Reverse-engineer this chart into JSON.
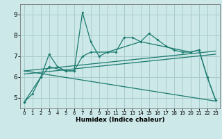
{
  "bg_color": "#cce8e8",
  "grid_color": "#aacccc",
  "line_color": "#1a7a6e",
  "xlabel": "Humidex (Indice chaleur)",
  "xlim": [
    -0.5,
    23.5
  ],
  "ylim": [
    4.5,
    9.5
  ],
  "yticks": [
    5,
    6,
    7,
    8,
    9
  ],
  "xticks": [
    0,
    1,
    2,
    3,
    4,
    5,
    6,
    7,
    8,
    9,
    10,
    11,
    12,
    13,
    14,
    15,
    16,
    17,
    18,
    19,
    20,
    21,
    22,
    23
  ],
  "series1_x": [
    0,
    1,
    2,
    3,
    4,
    5,
    6,
    7,
    8,
    9,
    10,
    11,
    12,
    13,
    14,
    15,
    16,
    17,
    18,
    19,
    20,
    21,
    22,
    23
  ],
  "series1_y": [
    4.8,
    5.2,
    6.0,
    7.1,
    6.5,
    6.3,
    6.3,
    9.1,
    7.7,
    7.0,
    7.2,
    7.2,
    7.9,
    7.9,
    7.7,
    8.1,
    7.8,
    7.5,
    7.3,
    7.2,
    7.2,
    7.3,
    6.0,
    4.9
  ],
  "series2_x": [
    0,
    2,
    3,
    5,
    6,
    7,
    8,
    10,
    14,
    20,
    21,
    22,
    23
  ],
  "series2_y": [
    4.8,
    6.0,
    6.5,
    6.3,
    6.3,
    7.0,
    7.2,
    7.2,
    7.7,
    7.2,
    7.3,
    6.0,
    4.9
  ],
  "line3_x": [
    0,
    23
  ],
  "line3_y": [
    6.15,
    7.1
  ],
  "line4_x": [
    0,
    23
  ],
  "line4_y": [
    6.3,
    7.25
  ],
  "line5_x": [
    0,
    23
  ],
  "line5_y": [
    6.3,
    4.85
  ]
}
